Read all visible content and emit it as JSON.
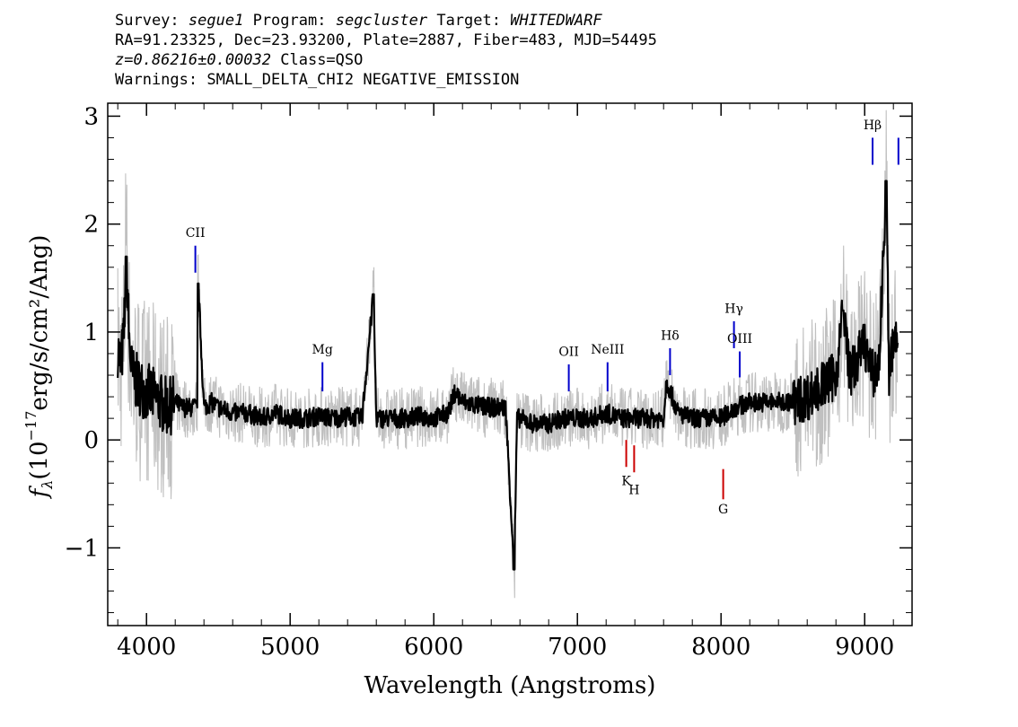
{
  "header": {
    "survey_label": "Survey:",
    "survey": "segue1",
    "program_label": "Program:",
    "program": "segcluster",
    "target_label": "Target:",
    "target": "WHITEDWARF",
    "line2": "RA=91.23325, Dec=23.93200, Plate=2887, Fiber=483, MJD=54495",
    "redshift": "z=0.86216±0.00032",
    "class_text": "Class=QSO",
    "warnings": "Warnings: SMALL_DELTA_CHI2 NEGATIVE_EMISSION"
  },
  "chart_data": {
    "type": "line",
    "xlabel": "Wavelength (Angstroms)",
    "ylabel_text": "(10",
    "ylabel_exp": "−17",
    "ylabel_units": "erg/s/cm²/Ang)",
    "xlim": [
      3730,
      9330
    ],
    "ylim": [
      -1.72,
      3.12
    ],
    "xticks": [
      4000,
      5000,
      6000,
      7000,
      8000,
      9000
    ],
    "yticks": [
      -1,
      0,
      1,
      2,
      3
    ],
    "xtick_labels": [
      "4000",
      "5000",
      "6000",
      "7000",
      "8000",
      "9000"
    ],
    "ytick_labels": [
      "−1",
      "0",
      "1",
      "2",
      "3"
    ],
    "grid": false,
    "series": [
      {
        "color": "#000000",
        "x": [
          3800,
          3820,
          3840,
          3860,
          3880,
          3900,
          3950,
          4000,
          4050,
          4100,
          4150,
          4200,
          4250,
          4300,
          4350,
          4360,
          4400,
          4450,
          4500,
          4600,
          4700,
          4800,
          4900,
          5000,
          5100,
          5200,
          5300,
          5400,
          5500,
          5580,
          5600,
          5700,
          5800,
          5900,
          6000,
          6100,
          6150,
          6200,
          6300,
          6400,
          6500,
          6560,
          6580,
          6600,
          6700,
          6800,
          6900,
          7000,
          7100,
          7200,
          7300,
          7400,
          7500,
          7600,
          7620,
          7700,
          7800,
          7900,
          8000,
          8100,
          8200,
          8300,
          8400,
          8500,
          8600,
          8700,
          8800,
          8850,
          8900,
          9000,
          9050,
          9100,
          9150,
          9170,
          9200,
          9230
        ],
        "y": [
          0.85,
          0.7,
          0.9,
          1.7,
          0.9,
          0.6,
          0.5,
          0.45,
          0.4,
          0.35,
          0.3,
          0.35,
          0.3,
          0.3,
          0.3,
          1.45,
          0.3,
          0.35,
          0.3,
          0.25,
          0.25,
          0.2,
          0.25,
          0.2,
          0.2,
          0.22,
          0.2,
          0.22,
          0.2,
          1.35,
          0.2,
          0.2,
          0.2,
          0.22,
          0.2,
          0.25,
          0.45,
          0.35,
          0.32,
          0.3,
          0.3,
          -1.2,
          0.2,
          0.2,
          0.15,
          0.15,
          0.2,
          0.2,
          0.2,
          0.25,
          0.2,
          0.2,
          0.2,
          0.2,
          0.55,
          0.25,
          0.2,
          0.2,
          0.2,
          0.3,
          0.35,
          0.35,
          0.35,
          0.35,
          0.4,
          0.5,
          0.6,
          1.2,
          0.6,
          0.9,
          0.6,
          0.7,
          2.4,
          0.6,
          0.9,
          0.9
        ]
      }
    ],
    "error_band": {
      "color": "#c0c0c0"
    },
    "line_markers": [
      {
        "label": "CII",
        "x": 4340,
        "y0": 1.55,
        "y1": 1.8,
        "color": "#0000cc",
        "label_y": 1.88
      },
      {
        "label": "Mg",
        "x": 5225,
        "y0": 0.45,
        "y1": 0.72,
        "color": "#0000cc",
        "label_y": 0.8
      },
      {
        "label": "OII",
        "x": 6940,
        "y0": 0.45,
        "y1": 0.7,
        "color": "#0000cc",
        "label_y": 0.78
      },
      {
        "label": "NeIII",
        "x": 7210,
        "y0": 0.45,
        "y1": 0.72,
        "color": "#0000cc",
        "label_y": 0.8
      },
      {
        "label": "Hδ",
        "x": 7645,
        "y0": 0.6,
        "y1": 0.85,
        "color": "#0000cc",
        "label_y": 0.93
      },
      {
        "label": "Hγ",
        "x": 8090,
        "y0": 0.85,
        "y1": 1.1,
        "color": "#0000cc",
        "label_y": 1.18
      },
      {
        "label": "OIII",
        "x": 8130,
        "y0": 0.58,
        "y1": 0.82,
        "color": "#0000cc",
        "label_y": 0.9
      },
      {
        "label": "Hβ",
        "x": 9055,
        "y0": 2.55,
        "y1": 2.8,
        "color": "#0000cc",
        "label_y": 2.88
      },
      {
        "label": "",
        "x": 9235,
        "y0": 2.55,
        "y1": 2.8,
        "color": "#0000cc",
        "label_y": 2.88
      },
      {
        "label": "K",
        "x": 7340,
        "y0": -0.25,
        "y1": 0.0,
        "color": "#cc0000",
        "label_y": -0.42
      },
      {
        "label": "H",
        "x": 7395,
        "y0": -0.3,
        "y1": -0.05,
        "color": "#cc0000",
        "label_y": -0.5
      },
      {
        "label": "G",
        "x": 8015,
        "y0": -0.55,
        "y1": -0.27,
        "color": "#cc0000",
        "label_y": -0.68
      }
    ]
  }
}
